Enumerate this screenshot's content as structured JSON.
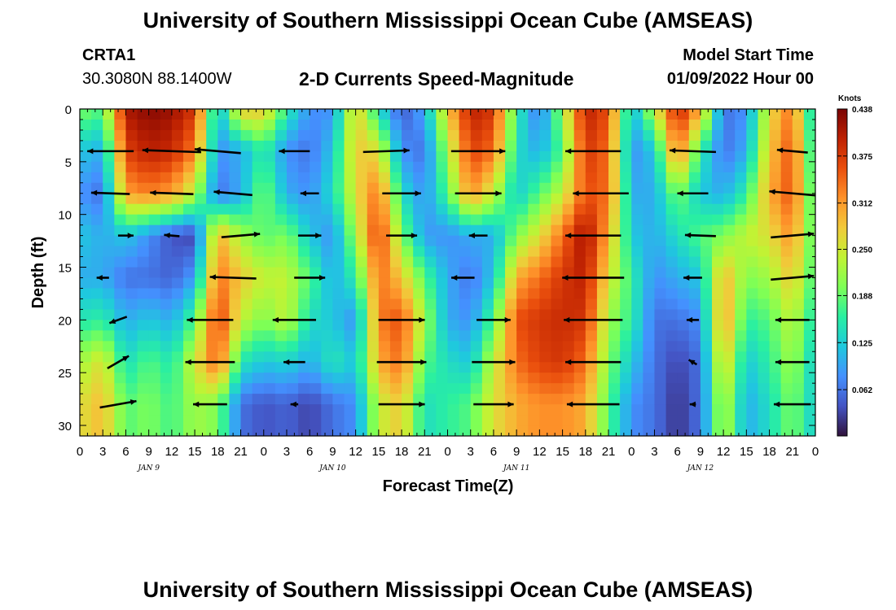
{
  "header": {
    "title": "University of Southern Mississippi Ocean Cube (AMSEAS)",
    "station": "CRTA1",
    "coords": "30.3080N  88.1400W",
    "plot_title": "2-D Currents Speed-Magnitude",
    "model_start_label": "Model Start Time",
    "model_start_value": "01/09/2022 Hour 00"
  },
  "footer": {
    "title": "University of Southern Mississippi Ocean Cube (AMSEAS)"
  },
  "chart_data": {
    "type": "heatmap",
    "title": "2-D Currents Speed-Magnitude",
    "xlabel": "Forecast Time(Z)",
    "ylabel": "Depth (ft)",
    "colorbar_unit": "Knots",
    "colorbar_ticks": [
      0.438,
      0.375,
      0.312,
      0.25,
      0.188,
      0.125,
      0.062
    ],
    "colorbar_range": [
      0.0,
      0.438
    ],
    "colorscale": [
      "#30123b",
      "#4454c4",
      "#4490fe",
      "#1fc8de",
      "#29efa2",
      "#7dff56",
      "#c1f334",
      "#f1ca3a",
      "#fe922a",
      "#ea4f0d",
      "#be2102",
      "#7a0403"
    ],
    "x_hours_range": [
      0,
      96
    ],
    "ylim": [
      0,
      31
    ],
    "y_reversed": true,
    "y_ticks": [
      0,
      5,
      10,
      15,
      20,
      25,
      30
    ],
    "x_tick_labels": [
      "0",
      "3",
      "6",
      "9",
      "12",
      "15",
      "18",
      "21",
      "0",
      "3",
      "6",
      "9",
      "12",
      "15",
      "18",
      "21",
      "0",
      "3",
      "6",
      "9",
      "12",
      "15",
      "18",
      "21",
      "0",
      "3",
      "6",
      "9",
      "12",
      "15",
      "18",
      "21",
      "0"
    ],
    "day_labels": [
      {
        "hour": 9,
        "label": "JAN 9"
      },
      {
        "hour": 33,
        "label": "JAN 10"
      },
      {
        "hour": 57,
        "label": "JAN 11"
      },
      {
        "hour": 81,
        "label": "JAN 12"
      }
    ],
    "depths_ft": [
      0,
      4,
      8,
      12,
      16,
      20,
      24,
      28
    ],
    "columns": [
      {
        "hour": 0,
        "speeds": [
          0.2,
          0.12,
          0.08,
          0.12,
          0.1,
          0.15,
          0.22,
          0.26
        ]
      },
      {
        "hour": 3,
        "speeds": [
          0.18,
          0.1,
          0.06,
          0.1,
          0.1,
          0.16,
          0.26,
          0.29
        ]
      },
      {
        "hour": 6,
        "speeds": [
          0.41,
          0.37,
          0.31,
          0.12,
          0.06,
          0.1,
          0.14,
          0.18
        ]
      },
      {
        "hour": 9,
        "speeds": [
          0.43,
          0.4,
          0.33,
          0.08,
          0.06,
          0.12,
          0.18,
          0.2
        ]
      },
      {
        "hour": 12,
        "speeds": [
          0.42,
          0.39,
          0.31,
          0.04,
          0.05,
          0.1,
          0.15,
          0.17
        ]
      },
      {
        "hour": 15,
        "speeds": [
          0.38,
          0.33,
          0.23,
          0.03,
          0.09,
          0.18,
          0.25,
          0.22
        ]
      },
      {
        "hour": 18,
        "speeds": [
          0.1,
          0.08,
          0.06,
          0.3,
          0.34,
          0.38,
          0.35,
          0.2
        ]
      },
      {
        "hour": 21,
        "speeds": [
          0.28,
          0.1,
          0.1,
          0.22,
          0.28,
          0.24,
          0.15,
          0.06
        ]
      },
      {
        "hour": 24,
        "speeds": [
          0.28,
          0.16,
          0.2,
          0.18,
          0.24,
          0.2,
          0.12,
          0.04
        ]
      },
      {
        "hour": 27,
        "speeds": [
          0.16,
          0.08,
          0.1,
          0.2,
          0.24,
          0.24,
          0.13,
          0.05
        ]
      },
      {
        "hour": 30,
        "speeds": [
          0.08,
          0.06,
          0.08,
          0.12,
          0.18,
          0.14,
          0.1,
          0.03
        ]
      },
      {
        "hour": 33,
        "speeds": [
          0.08,
          0.12,
          0.14,
          0.08,
          0.1,
          0.12,
          0.15,
          0.06
        ]
      },
      {
        "hour": 36,
        "speeds": [
          0.28,
          0.28,
          0.26,
          0.22,
          0.16,
          0.08,
          0.12,
          0.08
        ]
      },
      {
        "hour": 39,
        "speeds": [
          0.14,
          0.26,
          0.34,
          0.38,
          0.34,
          0.33,
          0.3,
          0.24
        ]
      },
      {
        "hour": 42,
        "speeds": [
          0.04,
          0.08,
          0.14,
          0.2,
          0.28,
          0.36,
          0.34,
          0.28
        ]
      },
      {
        "hour": 45,
        "speeds": [
          0.1,
          0.06,
          0.08,
          0.09,
          0.18,
          0.22,
          0.18,
          0.14
        ]
      },
      {
        "hour": 48,
        "speeds": [
          0.28,
          0.22,
          0.18,
          0.08,
          0.1,
          0.1,
          0.14,
          0.16
        ]
      },
      {
        "hour": 51,
        "speeds": [
          0.4,
          0.37,
          0.32,
          0.1,
          0.06,
          0.08,
          0.12,
          0.18
        ]
      },
      {
        "hour": 54,
        "speeds": [
          0.38,
          0.34,
          0.24,
          0.1,
          0.12,
          0.18,
          0.24,
          0.26
        ]
      },
      {
        "hour": 57,
        "speeds": [
          0.16,
          0.14,
          0.12,
          0.2,
          0.3,
          0.36,
          0.34,
          0.3
        ]
      },
      {
        "hour": 60,
        "speeds": [
          0.06,
          0.1,
          0.18,
          0.26,
          0.34,
          0.38,
          0.37,
          0.32
        ]
      },
      {
        "hour": 63,
        "speeds": [
          0.22,
          0.18,
          0.24,
          0.34,
          0.38,
          0.39,
          0.38,
          0.32
        ]
      },
      {
        "hour": 66,
        "speeds": [
          0.4,
          0.38,
          0.36,
          0.42,
          0.4,
          0.38,
          0.34,
          0.3
        ]
      },
      {
        "hour": 69,
        "speeds": [
          0.36,
          0.34,
          0.34,
          0.3,
          0.26,
          0.22,
          0.2,
          0.18
        ]
      },
      {
        "hour": 72,
        "speeds": [
          0.1,
          0.08,
          0.1,
          0.12,
          0.16,
          0.16,
          0.12,
          0.08
        ]
      },
      {
        "hour": 75,
        "speeds": [
          0.24,
          0.12,
          0.1,
          0.1,
          0.08,
          0.06,
          0.06,
          0.06
        ]
      },
      {
        "hour": 78,
        "speeds": [
          0.4,
          0.34,
          0.2,
          0.14,
          0.1,
          0.06,
          0.03,
          0.02
        ]
      },
      {
        "hour": 81,
        "speeds": [
          0.3,
          0.16,
          0.12,
          0.18,
          0.12,
          0.08,
          0.06,
          0.06
        ]
      },
      {
        "hour": 84,
        "speeds": [
          0.06,
          0.06,
          0.1,
          0.2,
          0.3,
          0.32,
          0.28,
          0.24
        ]
      },
      {
        "hour": 87,
        "speeds": [
          0.08,
          0.1,
          0.16,
          0.24,
          0.2,
          0.16,
          0.12,
          0.1
        ]
      },
      {
        "hour": 90,
        "speeds": [
          0.26,
          0.28,
          0.3,
          0.26,
          0.22,
          0.18,
          0.16,
          0.14
        ]
      },
      {
        "hour": 93,
        "speeds": [
          0.34,
          0.36,
          0.36,
          0.32,
          0.28,
          0.24,
          0.22,
          0.2
        ]
      },
      {
        "hour": 96,
        "speeds": [
          0.1,
          0.12,
          0.14,
          0.16,
          0.16,
          0.14,
          0.12,
          0.12
        ]
      }
    ],
    "vectors": [
      {
        "hour": 4,
        "depth": 4,
        "dir_deg": 180,
        "speed": 0.3
      },
      {
        "hour": 12,
        "depth": 4,
        "dir_deg": 178,
        "speed": 0.38
      },
      {
        "hour": 18,
        "depth": 4,
        "dir_deg": 175,
        "speed": 0.3
      },
      {
        "hour": 28,
        "depth": 4,
        "dir_deg": 180,
        "speed": 0.2
      },
      {
        "hour": 40,
        "depth": 4,
        "dir_deg": 2,
        "speed": 0.3
      },
      {
        "hour": 52,
        "depth": 4,
        "dir_deg": 0,
        "speed": 0.35
      },
      {
        "hour": 67,
        "depth": 4,
        "dir_deg": 180,
        "speed": 0.36
      },
      {
        "hour": 80,
        "depth": 4,
        "dir_deg": 178,
        "speed": 0.3
      },
      {
        "hour": 93,
        "depth": 4,
        "dir_deg": 175,
        "speed": 0.2
      },
      {
        "hour": 4,
        "depth": 8,
        "dir_deg": 178,
        "speed": 0.25
      },
      {
        "hour": 12,
        "depth": 8,
        "dir_deg": 178,
        "speed": 0.28
      },
      {
        "hour": 20,
        "depth": 8,
        "dir_deg": 175,
        "speed": 0.25
      },
      {
        "hour": 30,
        "depth": 8,
        "dir_deg": 180,
        "speed": 0.12
      },
      {
        "hour": 42,
        "depth": 8,
        "dir_deg": 0,
        "speed": 0.25
      },
      {
        "hour": 52,
        "depth": 8,
        "dir_deg": 0,
        "speed": 0.3
      },
      {
        "hour": 68,
        "depth": 8,
        "dir_deg": 180,
        "speed": 0.36
      },
      {
        "hour": 80,
        "depth": 8,
        "dir_deg": 180,
        "speed": 0.2
      },
      {
        "hour": 93,
        "depth": 8,
        "dir_deg": 175,
        "speed": 0.3
      },
      {
        "hour": 6,
        "depth": 12,
        "dir_deg": 0,
        "speed": 0.1
      },
      {
        "hour": 12,
        "depth": 12,
        "dir_deg": 175,
        "speed": 0.1
      },
      {
        "hour": 21,
        "depth": 12,
        "dir_deg": 5,
        "speed": 0.25
      },
      {
        "hour": 30,
        "depth": 12,
        "dir_deg": 0,
        "speed": 0.15
      },
      {
        "hour": 42,
        "depth": 12,
        "dir_deg": 0,
        "speed": 0.2
      },
      {
        "hour": 52,
        "depth": 12,
        "dir_deg": 180,
        "speed": 0.12
      },
      {
        "hour": 67,
        "depth": 12,
        "dir_deg": 180,
        "speed": 0.36
      },
      {
        "hour": 81,
        "depth": 12,
        "dir_deg": 178,
        "speed": 0.2
      },
      {
        "hour": 93,
        "depth": 12,
        "dir_deg": 5,
        "speed": 0.28
      },
      {
        "hour": 3,
        "depth": 16,
        "dir_deg": 180,
        "speed": 0.08
      },
      {
        "hour": 20,
        "depth": 16,
        "dir_deg": 178,
        "speed": 0.3
      },
      {
        "hour": 30,
        "depth": 16,
        "dir_deg": 0,
        "speed": 0.2
      },
      {
        "hour": 50,
        "depth": 16,
        "dir_deg": 180,
        "speed": 0.15
      },
      {
        "hour": 67,
        "depth": 16,
        "dir_deg": 180,
        "speed": 0.4
      },
      {
        "hour": 80,
        "depth": 16,
        "dir_deg": 180,
        "speed": 0.12
      },
      {
        "hour": 93,
        "depth": 16,
        "dir_deg": 5,
        "speed": 0.28
      },
      {
        "hour": 5,
        "depth": 20,
        "dir_deg": 200,
        "speed": 0.12
      },
      {
        "hour": 17,
        "depth": 20,
        "dir_deg": 180,
        "speed": 0.3
      },
      {
        "hour": 28,
        "depth": 20,
        "dir_deg": 180,
        "speed": 0.28
      },
      {
        "hour": 42,
        "depth": 20,
        "dir_deg": 0,
        "speed": 0.3
      },
      {
        "hour": 54,
        "depth": 20,
        "dir_deg": 0,
        "speed": 0.22
      },
      {
        "hour": 67,
        "depth": 20,
        "dir_deg": 180,
        "speed": 0.38
      },
      {
        "hour": 80,
        "depth": 20,
        "dir_deg": 180,
        "speed": 0.08
      },
      {
        "hour": 93,
        "depth": 20,
        "dir_deg": 180,
        "speed": 0.22
      },
      {
        "hour": 5,
        "depth": 24,
        "dir_deg": 30,
        "speed": 0.16
      },
      {
        "hour": 17,
        "depth": 24,
        "dir_deg": 180,
        "speed": 0.32
      },
      {
        "hour": 28,
        "depth": 24,
        "dir_deg": 180,
        "speed": 0.14
      },
      {
        "hour": 42,
        "depth": 24,
        "dir_deg": 0,
        "speed": 0.32
      },
      {
        "hour": 54,
        "depth": 24,
        "dir_deg": 0,
        "speed": 0.28
      },
      {
        "hour": 67,
        "depth": 24,
        "dir_deg": 180,
        "speed": 0.36
      },
      {
        "hour": 80,
        "depth": 24,
        "dir_deg": 150,
        "speed": 0.06
      },
      {
        "hour": 93,
        "depth": 24,
        "dir_deg": 180,
        "speed": 0.22
      },
      {
        "hour": 5,
        "depth": 28,
        "dir_deg": 10,
        "speed": 0.24
      },
      {
        "hour": 17,
        "depth": 28,
        "dir_deg": 180,
        "speed": 0.22
      },
      {
        "hour": 28,
        "depth": 28,
        "dir_deg": 180,
        "speed": 0.05
      },
      {
        "hour": 42,
        "depth": 28,
        "dir_deg": 0,
        "speed": 0.3
      },
      {
        "hour": 54,
        "depth": 28,
        "dir_deg": 0,
        "speed": 0.26
      },
      {
        "hour": 67,
        "depth": 28,
        "dir_deg": 180,
        "speed": 0.34
      },
      {
        "hour": 80,
        "depth": 28,
        "dir_deg": 180,
        "speed": 0.04
      },
      {
        "hour": 93,
        "depth": 28,
        "dir_deg": 180,
        "speed": 0.24
      }
    ]
  }
}
